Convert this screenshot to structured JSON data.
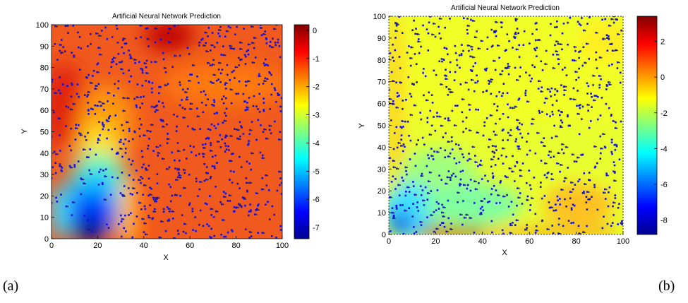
{
  "captions": [
    "(a)",
    "(b)"
  ],
  "chart_data": [
    {
      "type": "heatmap",
      "title": "Artificial Neural Network Prediction",
      "xlabel": "X",
      "ylabel": "Y",
      "xlim": [
        0,
        100
      ],
      "ylim": [
        0,
        100
      ],
      "x_ticks": [
        "0",
        "20",
        "40",
        "60",
        "80",
        "100"
      ],
      "y_ticks": [
        "0",
        "10",
        "20",
        "30",
        "40",
        "50",
        "60",
        "70",
        "80",
        "90",
        "100"
      ],
      "colorbar": {
        "range": [
          -7.4,
          0.2
        ],
        "ticks": [
          "0",
          "-1",
          "-2",
          "-3",
          "-4",
          "-5",
          "-6",
          "-7"
        ]
      },
      "colormap": "jet",
      "marker_color": "#1010e0",
      "scatter_points_shown": true
    },
    {
      "type": "heatmap",
      "title": "Artificial Neural Network Prediction",
      "xlabel": "X",
      "ylabel": "Y",
      "xlim": [
        0,
        100
      ],
      "ylim": [
        0,
        100
      ],
      "x_ticks": [
        "0",
        "20",
        "40",
        "60",
        "80",
        "100"
      ],
      "y_ticks": [
        "0",
        "10",
        "20",
        "30",
        "40",
        "50",
        "60",
        "70",
        "80",
        "90",
        "100"
      ],
      "colorbar": {
        "range": [
          -8.8,
          3.4
        ],
        "ticks": [
          "2",
          "0",
          "-2",
          "-4",
          "-6",
          "-8"
        ]
      },
      "colormap": "jet",
      "marker_color": "#1010e0",
      "scatter_points_shown": true
    }
  ]
}
